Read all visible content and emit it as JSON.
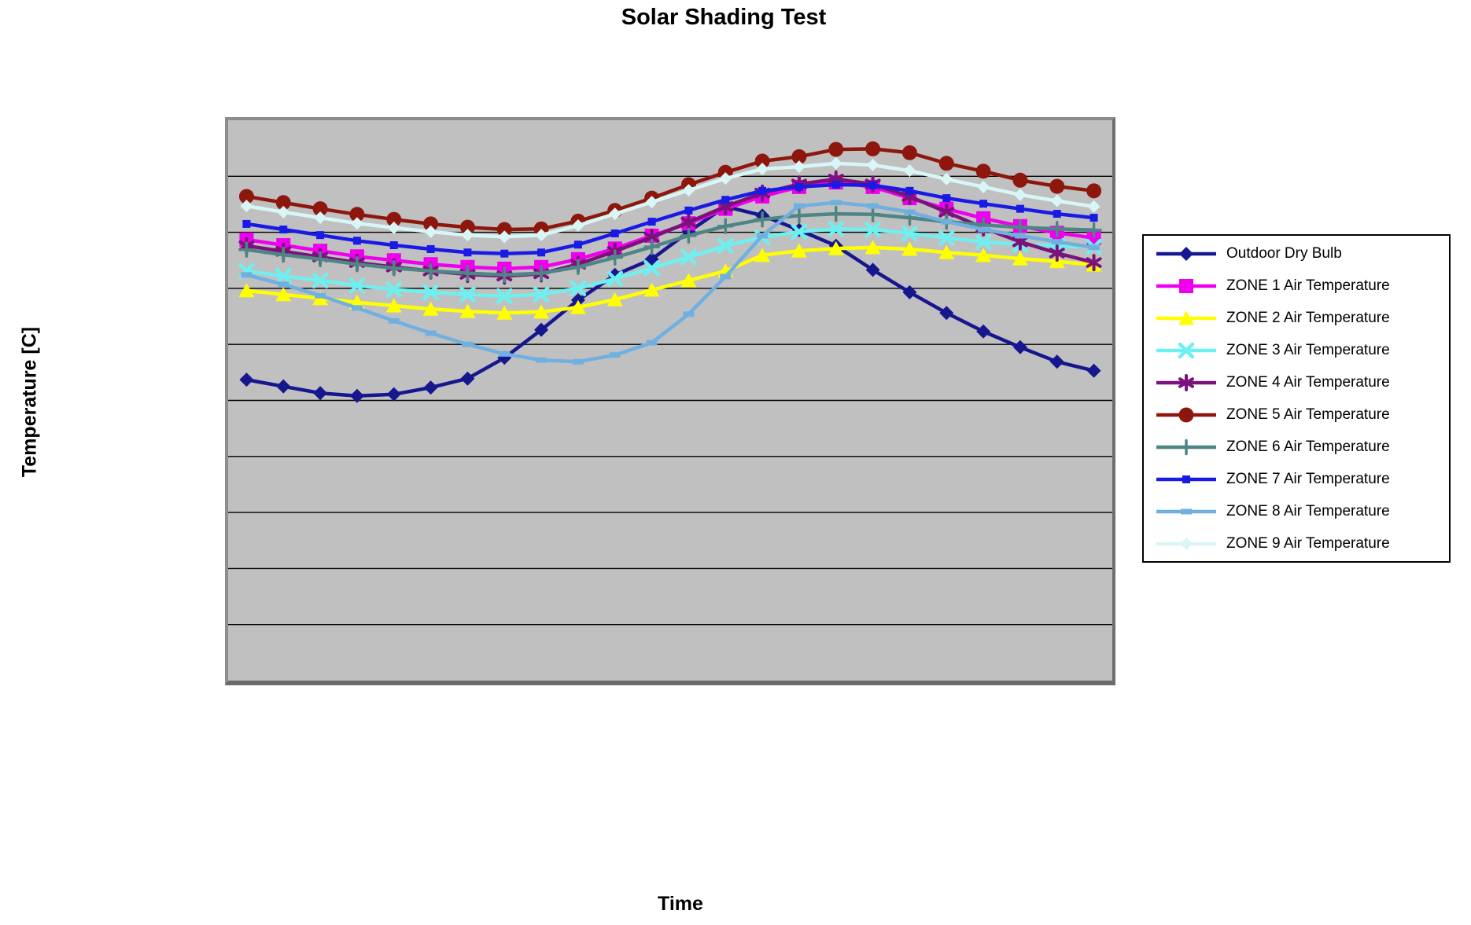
{
  "title": "Solar Shading Test",
  "y_axis_label": "Temperature [C]",
  "x_axis_label": "Time",
  "chart_data": {
    "type": "line",
    "title": "Solar Shading Test",
    "xlabel": "Time",
    "ylabel": "Temperature [C]",
    "axis_tick_labels_visible": false,
    "values_unit": "gridline divisions (y-axis unlabeled; 0 = bottom border, 10 = top border, 9 horizontal gridlines)",
    "plot_background": "#c0c0c0",
    "gridline_color": "#000000",
    "legend_position": "right",
    "x_hours": [
      1,
      2,
      3,
      4,
      5,
      6,
      7,
      8,
      9,
      10,
      11,
      12,
      13,
      14,
      15,
      16,
      17,
      18,
      19,
      20,
      21,
      22,
      23,
      24
    ],
    "ylim": [
      0,
      10
    ],
    "series": [
      {
        "name": "Outdoor Dry Bulb",
        "color": "#16168f",
        "marker": "diamond",
        "values": [
          5.37,
          5.25,
          5.13,
          5.08,
          5.11,
          5.23,
          5.39,
          5.76,
          6.26,
          6.79,
          7.24,
          7.52,
          8.01,
          8.46,
          8.3,
          8.04,
          7.76,
          7.33,
          6.93,
          6.56,
          6.23,
          5.95,
          5.69,
          5.53
        ]
      },
      {
        "name": "ZONE 1 Air Temperature",
        "color": "#ee00ee",
        "marker": "square",
        "values": [
          7.87,
          7.77,
          7.67,
          7.57,
          7.5,
          7.43,
          7.38,
          7.35,
          7.38,
          7.52,
          7.71,
          7.94,
          8.16,
          8.42,
          8.64,
          8.81,
          8.89,
          8.81,
          8.61,
          8.42,
          8.25,
          8.11,
          7.99,
          7.9
        ]
      },
      {
        "name": "ZONE 2 Air Temperature",
        "color": "#ffff00",
        "marker": "triangle",
        "values": [
          6.96,
          6.89,
          6.82,
          6.75,
          6.69,
          6.63,
          6.59,
          6.56,
          6.58,
          6.66,
          6.8,
          6.97,
          7.14,
          7.31,
          7.59,
          7.67,
          7.71,
          7.73,
          7.7,
          7.64,
          7.59,
          7.53,
          7.48,
          7.42
        ]
      },
      {
        "name": "ZONE 3 Air Temperature",
        "color": "#6ef0f0",
        "marker": "x",
        "values": [
          7.31,
          7.22,
          7.14,
          7.05,
          6.98,
          6.93,
          6.89,
          6.86,
          6.89,
          7.0,
          7.17,
          7.36,
          7.56,
          7.76,
          7.91,
          8.01,
          8.06,
          8.05,
          7.98,
          7.9,
          7.83,
          7.78,
          7.76,
          7.74
        ]
      },
      {
        "name": "ZONE 4 Air Temperature",
        "color": "#7a127a",
        "marker": "asterisk",
        "values": [
          7.76,
          7.66,
          7.56,
          7.46,
          7.38,
          7.31,
          7.25,
          7.22,
          7.26,
          7.43,
          7.66,
          7.91,
          8.18,
          8.46,
          8.7,
          8.86,
          8.95,
          8.86,
          8.64,
          8.36,
          8.08,
          7.83,
          7.63,
          7.46
        ]
      },
      {
        "name": "ZONE 5 Air Temperature",
        "color": "#8d170d",
        "marker": "circle",
        "values": [
          8.64,
          8.53,
          8.42,
          8.32,
          8.23,
          8.15,
          8.09,
          8.05,
          8.06,
          8.2,
          8.39,
          8.61,
          8.85,
          9.07,
          9.27,
          9.35,
          9.48,
          9.49,
          9.42,
          9.23,
          9.09,
          8.93,
          8.82,
          8.74
        ]
      },
      {
        "name": "ZONE 6 Air Temperature",
        "color": "#4e8585",
        "marker": "plus",
        "values": [
          7.69,
          7.6,
          7.52,
          7.43,
          7.36,
          7.31,
          7.27,
          7.24,
          7.27,
          7.38,
          7.55,
          7.74,
          7.94,
          8.11,
          8.23,
          8.3,
          8.33,
          8.32,
          8.26,
          8.19,
          8.13,
          8.09,
          8.06,
          8.04
        ]
      },
      {
        "name": "ZONE 7 Air Temperature",
        "color": "#1a1ae6",
        "marker": "square-small",
        "values": [
          8.15,
          8.05,
          7.95,
          7.85,
          7.77,
          7.7,
          7.64,
          7.62,
          7.64,
          7.78,
          7.98,
          8.19,
          8.39,
          8.58,
          8.74,
          8.81,
          8.85,
          8.84,
          8.74,
          8.61,
          8.51,
          8.42,
          8.33,
          8.26
        ]
      },
      {
        "name": "ZONE 8 Air Temperature",
        "color": "#70b0e0",
        "marker": "dash",
        "values": [
          7.24,
          7.07,
          6.87,
          6.65,
          6.42,
          6.2,
          6.0,
          5.83,
          5.72,
          5.69,
          5.81,
          6.03,
          6.54,
          7.21,
          7.94,
          8.47,
          8.53,
          8.47,
          8.36,
          8.19,
          8.05,
          7.94,
          7.83,
          7.73
        ]
      },
      {
        "name": "ZONE 9 Air Temperature",
        "color": "#d9f6f6",
        "marker": "diamond-pale",
        "values": [
          8.47,
          8.36,
          8.26,
          8.16,
          8.08,
          8.01,
          7.95,
          7.92,
          7.95,
          8.12,
          8.33,
          8.54,
          8.75,
          8.96,
          9.13,
          9.17,
          9.23,
          9.2,
          9.1,
          8.95,
          8.81,
          8.67,
          8.56,
          8.46
        ]
      }
    ]
  }
}
